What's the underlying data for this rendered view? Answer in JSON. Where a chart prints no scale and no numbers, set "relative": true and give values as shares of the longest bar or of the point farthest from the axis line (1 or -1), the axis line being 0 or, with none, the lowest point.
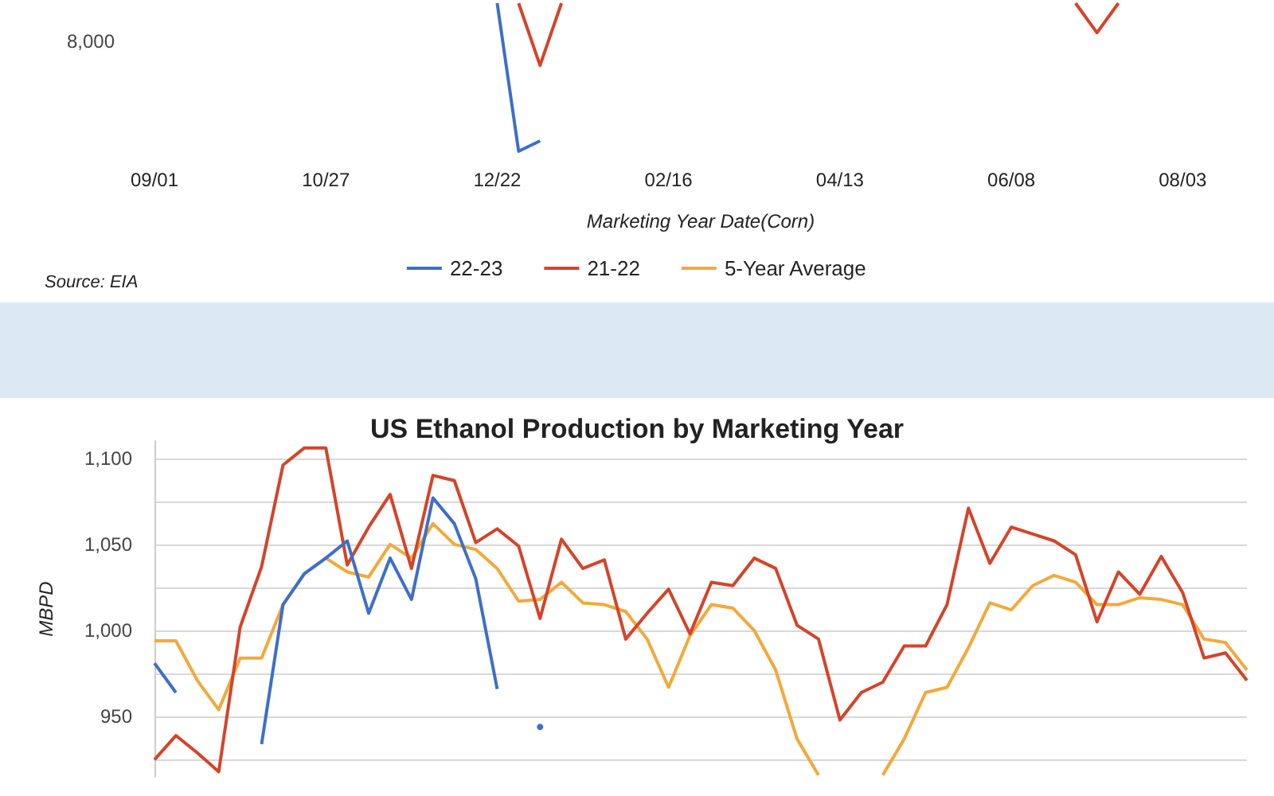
{
  "chart_data": [
    {
      "type": "line",
      "relative": true,
      "xlabel": "Marketing Year Date(Corn)",
      "categories": [
        "09/01",
        null,
        null,
        null,
        null,
        null,
        null,
        null,
        "10/27",
        null,
        null,
        null,
        null,
        null,
        null,
        null,
        "12/22",
        null,
        null,
        null,
        null,
        null,
        null,
        null,
        "02/16",
        null,
        null,
        null,
        null,
        null,
        null,
        null,
        "04/13",
        null,
        null,
        null,
        null,
        null,
        null,
        null,
        "06/08",
        null,
        null,
        null,
        null,
        null,
        null,
        null,
        "08/03",
        null,
        null,
        null
      ],
      "legend": "bottom",
      "annotations": [
        "8,000",
        "Source: EIA"
      ],
      "series": [
        {
          "name": "22-23",
          "color": "#3d6fc9",
          "values": [
            null,
            null,
            null,
            null,
            null,
            null,
            null,
            null,
            null,
            null,
            null,
            null,
            null,
            null,
            null,
            null,
            1,
            0,
            0.07,
            null,
            null,
            null,
            null,
            null,
            null,
            null,
            null,
            null,
            null,
            null,
            null,
            null,
            null,
            null,
            null,
            null,
            null,
            null,
            null,
            null,
            null,
            null,
            null,
            null,
            null,
            null,
            null,
            null,
            null,
            null,
            null,
            null
          ]
        },
        {
          "name": "21-22",
          "color": "#d4442a",
          "values": [
            null,
            null,
            null,
            null,
            null,
            null,
            null,
            null,
            null,
            null,
            null,
            null,
            null,
            null,
            null,
            null,
            null,
            1,
            0.58,
            1,
            null,
            null,
            null,
            null,
            null,
            null,
            null,
            null,
            null,
            null,
            null,
            null,
            null,
            null,
            null,
            null,
            null,
            null,
            null,
            null,
            null,
            null,
            null,
            1,
            0.8,
            1,
            null,
            null,
            null,
            null,
            null,
            null
          ]
        },
        {
          "name": "5-Year Average",
          "color": "#f2a93b",
          "values": [
            null,
            null,
            null,
            null,
            null,
            null,
            null,
            null,
            null,
            null,
            null,
            null,
            null,
            null,
            null,
            null,
            null,
            null,
            null,
            null,
            null,
            null,
            null,
            null,
            null,
            null,
            null,
            null,
            null,
            null,
            null,
            null,
            null,
            null,
            null,
            null,
            null,
            null,
            null,
            null,
            null,
            null,
            null,
            null,
            null,
            null,
            null,
            null,
            null,
            null,
            null,
            null
          ]
        }
      ]
    },
    {
      "type": "line",
      "title": "US Ethanol Production by Marketing Year",
      "ylabel": "MBPD",
      "categories": [
        null,
        null,
        null,
        null,
        null,
        null,
        null,
        null,
        null,
        null,
        null,
        null,
        null,
        null,
        null,
        null,
        null,
        null,
        null,
        null,
        null,
        null,
        null,
        null,
        null,
        null,
        null,
        null,
        null,
        null,
        null,
        null,
        null,
        null,
        null,
        null,
        null,
        null,
        null,
        null,
        null,
        null,
        null,
        null,
        null,
        null,
        null,
        null,
        null,
        null,
        null,
        null
      ],
      "ylim": [
        915,
        1110
      ],
      "yticks": [
        {
          "value": 925,
          "label": null
        },
        950,
        {
          "value": 975,
          "label": null
        },
        {
          "value": 1000,
          "label": "1,000"
        },
        {
          "value": 1025,
          "label": null
        },
        {
          "value": 1050,
          "label": "1,050"
        },
        {
          "value": 1075,
          "label": null
        },
        {
          "value": 1100,
          "label": "1,100"
        }
      ],
      "grid": "y",
      "series": [
        {
          "color": "#f2a93b",
          "values": [
            994,
            994,
            971,
            954,
            984,
            984,
            1015,
            1033,
            1042,
            1034,
            1031,
            1050,
            1042,
            1062,
            1050,
            1047,
            1036,
            1017,
            1018,
            1028,
            1016,
            1015,
            1011,
            995,
            967,
            997,
            1015,
            1013,
            1000,
            977,
            937,
            916,
            null,
            null,
            916,
            937,
            964,
            967,
            990,
            1016,
            1012,
            1026,
            1032,
            1028,
            1015,
            1015,
            1019,
            1018,
            1015,
            995,
            993,
            977
          ]
        },
        {
          "color": "#d4442a",
          "values": [
            925,
            939,
            929,
            918,
            1002,
            1037,
            1096,
            1106,
            1106,
            1038,
            1060,
            1079,
            1036,
            1090,
            1087,
            1051,
            1059,
            1049,
            1007,
            1053,
            1036,
            1041,
            995,
            1010,
            1024,
            998,
            1028,
            1026,
            1042,
            1036,
            1003,
            995,
            948,
            964,
            970,
            991,
            991,
            1015,
            1071,
            1039,
            1060,
            1056,
            1052,
            1044,
            1005,
            1034,
            1021,
            1043,
            1022,
            984,
            987,
            971
          ]
        },
        {
          "color": "#3d6fc9",
          "values": [
            981,
            964,
            null,
            null,
            null,
            934,
            1015,
            1033,
            1042,
            1052,
            1010,
            1042,
            1018,
            1077,
            1062,
            1030,
            966,
            null,
            944,
            null,
            null,
            null,
            null,
            null,
            null,
            null,
            null,
            null,
            null,
            null,
            null,
            null,
            null,
            null,
            null,
            null,
            null,
            null,
            null,
            null,
            null,
            null,
            null,
            null,
            null,
            null,
            null,
            null,
            null,
            null,
            null,
            null
          ]
        }
      ]
    }
  ]
}
